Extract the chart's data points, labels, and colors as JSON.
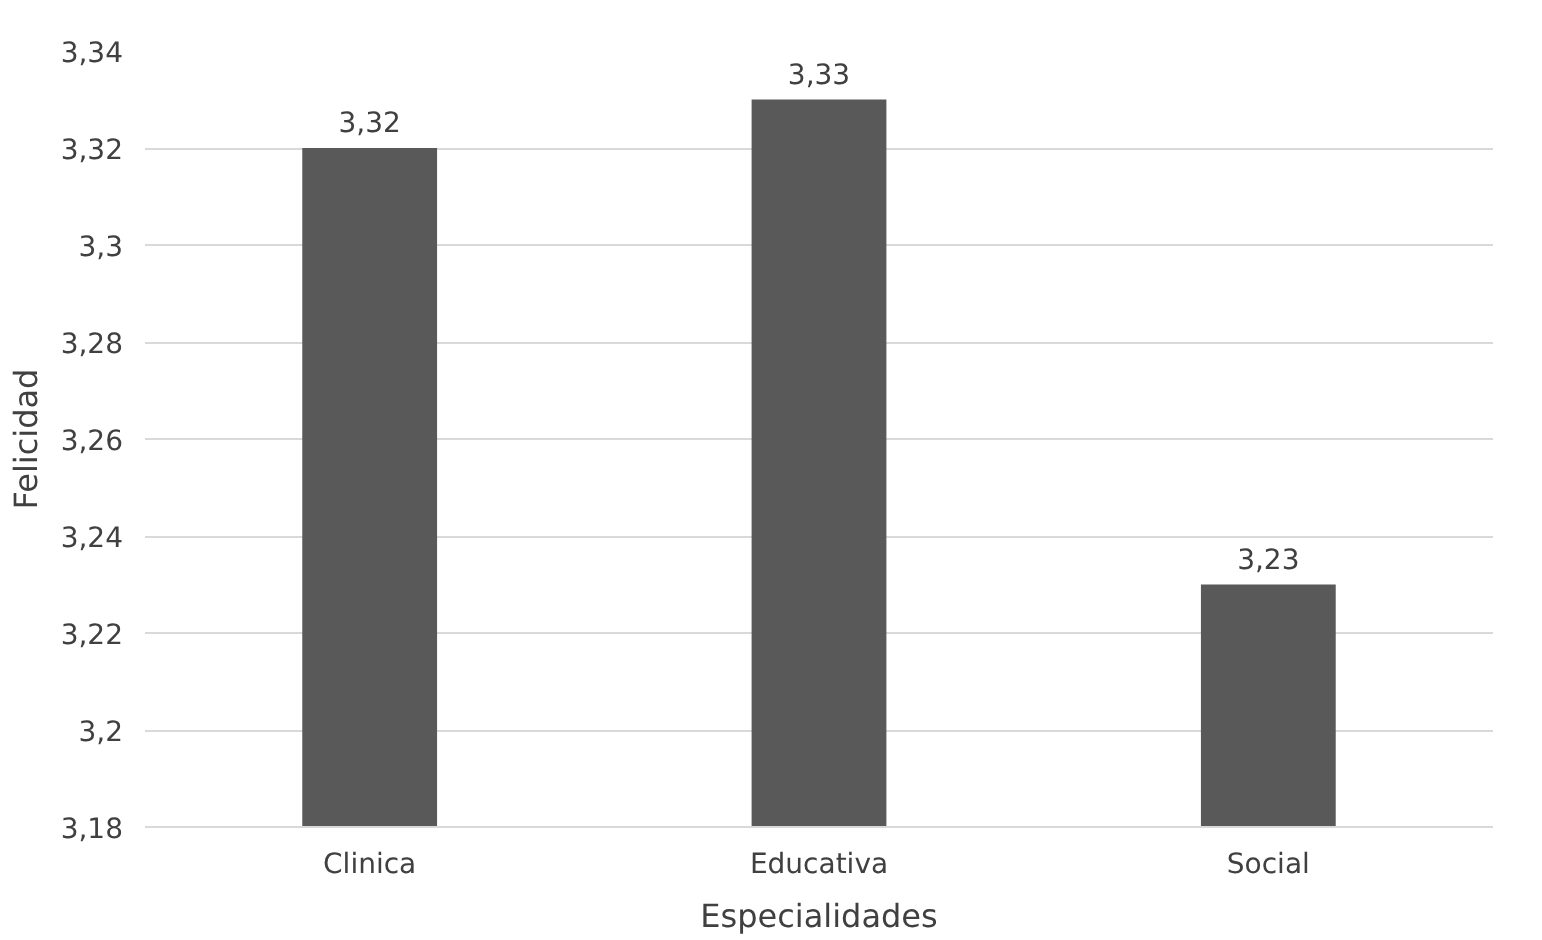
{
  "chart_data": {
    "type": "bar",
    "xlabel": "Especialidades",
    "ylabel": "Felicidad",
    "categories": [
      "Clinica",
      "Educativa",
      "Social"
    ],
    "values": [
      3.32,
      3.33,
      3.23
    ],
    "color": "#595959",
    "value_labels": [
      "3,32",
      "3,33",
      "3,23"
    ],
    "ylim": [
      3.18,
      3.34
    ],
    "yticks": [
      {
        "value": 3.18,
        "label": "3,18"
      },
      {
        "value": 3.2,
        "label": "3,2"
      },
      {
        "value": 3.22,
        "label": "3,22"
      },
      {
        "value": 3.24,
        "label": "3,24"
      },
      {
        "value": 3.26,
        "label": "3,26"
      },
      {
        "value": 3.28,
        "label": "3,28"
      },
      {
        "value": 3.3,
        "label": "3,3"
      },
      {
        "value": 3.32,
        "label": "3,32"
      },
      {
        "value": 3.34,
        "label": "3,34"
      }
    ],
    "grid": "y"
  }
}
